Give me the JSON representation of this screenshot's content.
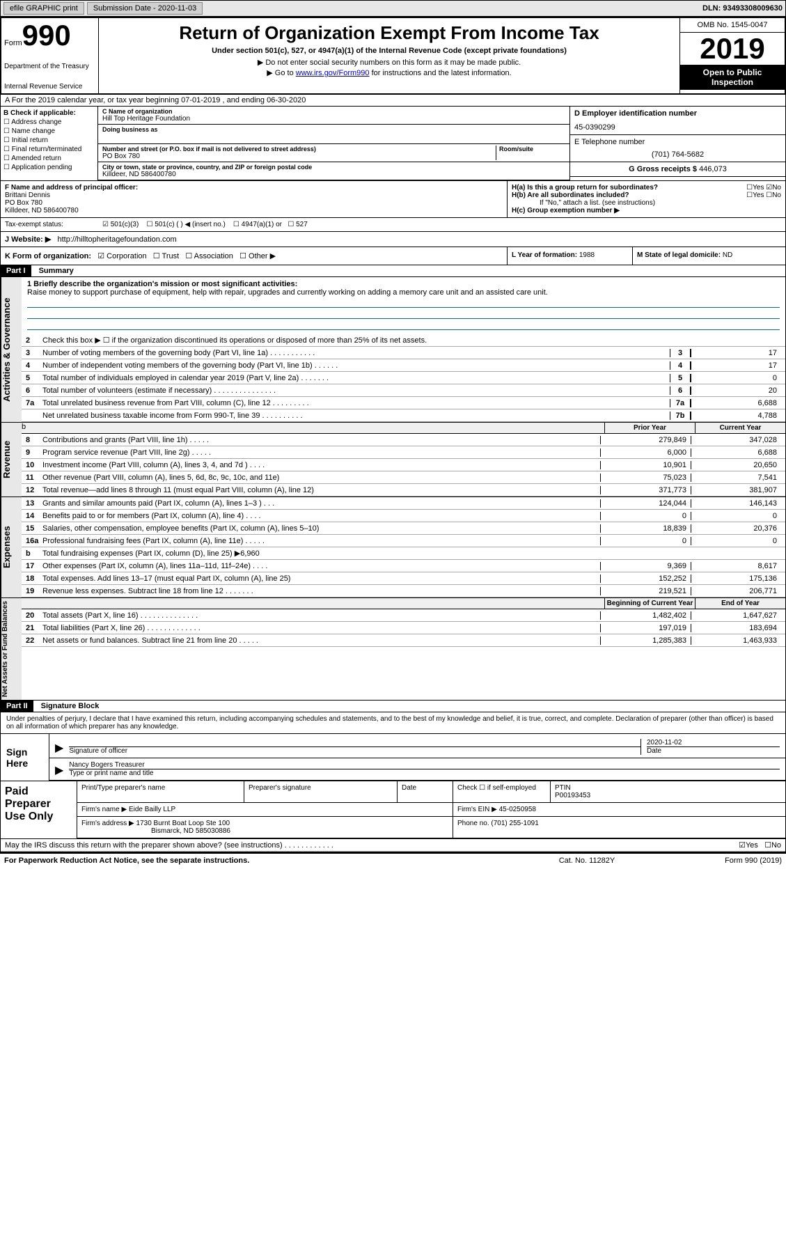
{
  "topbar": {
    "efile": "efile GRAPHIC print",
    "sub_label": "Submission Date",
    "sub_date": "2020-11-03",
    "dln": "DLN: 93493308009630"
  },
  "header": {
    "form_label": "Form",
    "form_num": "990",
    "dept": "Department of the Treasury",
    "irs": "Internal Revenue Service",
    "title": "Return of Organization Exempt From Income Tax",
    "subtitle": "Under section 501(c), 527, or 4947(a)(1) of the Internal Revenue Code (except private foundations)",
    "note1": "▶ Do not enter social security numbers on this form as it may be made public.",
    "note2_pre": "▶ Go to ",
    "note2_link": "www.irs.gov/Form990",
    "note2_post": " for instructions and the latest information.",
    "omb": "OMB No. 1545-0047",
    "year": "2019",
    "open": "Open to Public Inspection"
  },
  "row_a": "A For the 2019 calendar year, or tax year beginning 07-01-2019   , and ending 06-30-2020",
  "col_b": {
    "header": "B Check if applicable:",
    "items": [
      "Address change",
      "Name change",
      "Initial return",
      "Final return/terminated",
      "Amended return",
      "Application pending"
    ]
  },
  "col_c": {
    "name_label": "C Name of organization",
    "name": "Hill Top Heritage Foundation",
    "dba_label": "Doing business as",
    "addr_label": "Number and street (or P.O. box if mail is not delivered to street address)",
    "room_label": "Room/suite",
    "addr": "PO Box 780",
    "city_label": "City or town, state or province, country, and ZIP or foreign postal code",
    "city": "Killdeer, ND  586400780"
  },
  "col_d": {
    "ein_label": "D Employer identification number",
    "ein": "45-0390299",
    "phone_label": "E Telephone number",
    "phone": "(701) 764-5682",
    "gross_label": "G Gross receipts $",
    "gross": "446,073"
  },
  "row_f": {
    "label": "F  Name and address of principal officer:",
    "name": "Brittani Dennis",
    "addr1": "PO Box 780",
    "addr2": "Killdeer, ND  586400780"
  },
  "row_h": {
    "ha": "H(a)  Is this a group return for subordinates?",
    "hb": "H(b)  Are all subordinates included?",
    "hb_note": "If \"No,\" attach a list. (see instructions)",
    "hc": "H(c)  Group exemption number ▶",
    "yes": "Yes",
    "no": "No"
  },
  "tax_status": {
    "label": "Tax-exempt status:",
    "opt1": "501(c)(3)",
    "opt2": "501(c) (  ) ◀ (insert no.)",
    "opt3": "4947(a)(1) or",
    "opt4": "527"
  },
  "website": {
    "label": "J   Website: ▶",
    "url": "http://hilltopheritagefoundation.com"
  },
  "row_k": {
    "label": "K Form of organization:",
    "corp": "Corporation",
    "trust": "Trust",
    "assoc": "Association",
    "other": "Other ▶"
  },
  "row_l": {
    "label": "L Year of formation:",
    "val": "1988"
  },
  "row_m": {
    "label": "M State of legal domicile:",
    "val": "ND"
  },
  "part1": {
    "label": "Part I",
    "title": "Summary"
  },
  "mission": {
    "label": "1  Briefly describe the organization's mission or most significant activities:",
    "text": "Raise money to support purchase of equipment, help with repair, upgrades and currently working on adding a memory care unit and an assisted care unit."
  },
  "lines_gov": [
    {
      "num": "2",
      "desc": "Check this box ▶ ☐ if the organization discontinued its operations or disposed of more than 25% of its net assets."
    },
    {
      "num": "3",
      "desc": "Number of voting members of the governing body (Part VI, line 1a)  .  .  .  .  .  .  .  .  .  .  .",
      "box": "3",
      "val": "17"
    },
    {
      "num": "4",
      "desc": "Number of independent voting members of the governing body (Part VI, line 1b)  .  .  .  .  .  .",
      "box": "4",
      "val": "17"
    },
    {
      "num": "5",
      "desc": "Total number of individuals employed in calendar year 2019 (Part V, line 2a)  .  .  .  .  .  .  .",
      "box": "5",
      "val": "0"
    },
    {
      "num": "6",
      "desc": "Total number of volunteers (estimate if necessary)  .  .  .  .  .  .  .  .  .  .  .  .  .  .  .",
      "box": "6",
      "val": "20"
    },
    {
      "num": "7a",
      "desc": "Total unrelated business revenue from Part VIII, column (C), line 12  .  .  .  .  .  .  .  .  .",
      "box": "7a",
      "val": "6,688"
    },
    {
      "num": "",
      "desc": "Net unrelated business taxable income from Form 990-T, line 39  .  .  .  .  .  .  .  .  .  .",
      "box": "7b",
      "val": "4,788"
    }
  ],
  "col_headers": {
    "prior": "Prior Year",
    "current": "Current Year"
  },
  "lines_rev": [
    {
      "num": "8",
      "desc": "Contributions and grants (Part VIII, line 1h)  .  .  .  .  .",
      "prior": "279,849",
      "cur": "347,028"
    },
    {
      "num": "9",
      "desc": "Program service revenue (Part VIII, line 2g)  .  .  .  .  .",
      "prior": "6,000",
      "cur": "6,688"
    },
    {
      "num": "10",
      "desc": "Investment income (Part VIII, column (A), lines 3, 4, and 7d )  .  .  .  .",
      "prior": "10,901",
      "cur": "20,650"
    },
    {
      "num": "11",
      "desc": "Other revenue (Part VIII, column (A), lines 5, 6d, 8c, 9c, 10c, and 11e)",
      "prior": "75,023",
      "cur": "7,541"
    },
    {
      "num": "12",
      "desc": "Total revenue—add lines 8 through 11 (must equal Part VIII, column (A), line 12)",
      "prior": "371,773",
      "cur": "381,907"
    }
  ],
  "lines_exp": [
    {
      "num": "13",
      "desc": "Grants and similar amounts paid (Part IX, column (A), lines 1–3 )  .  .  .",
      "prior": "124,044",
      "cur": "146,143"
    },
    {
      "num": "14",
      "desc": "Benefits paid to or for members (Part IX, column (A), line 4)  .  .  .  .",
      "prior": "0",
      "cur": "0"
    },
    {
      "num": "15",
      "desc": "Salaries, other compensation, employee benefits (Part IX, column (A), lines 5–10)",
      "prior": "18,839",
      "cur": "20,376"
    },
    {
      "num": "16a",
      "desc": "Professional fundraising fees (Part IX, column (A), line 11e)  .  .  .  .  .",
      "prior": "0",
      "cur": "0"
    },
    {
      "num": "b",
      "desc": "Total fundraising expenses (Part IX, column (D), line 25) ▶6,960",
      "prior": "",
      "cur": "",
      "gray": true
    },
    {
      "num": "17",
      "desc": "Other expenses (Part IX, column (A), lines 11a–11d, 11f–24e)  .  .  .  .",
      "prior": "9,369",
      "cur": "8,617"
    },
    {
      "num": "18",
      "desc": "Total expenses. Add lines 13–17 (must equal Part IX, column (A), line 25)",
      "prior": "152,252",
      "cur": "175,136"
    },
    {
      "num": "19",
      "desc": "Revenue less expenses. Subtract line 18 from line 12  .  .  .  .  .  .  .",
      "prior": "219,521",
      "cur": "206,771"
    }
  ],
  "col_headers2": {
    "begin": "Beginning of Current Year",
    "end": "End of Year"
  },
  "lines_net": [
    {
      "num": "20",
      "desc": "Total assets (Part X, line 16)  .  .  .  .  .  .  .  .  .  .  .  .  .  .",
      "prior": "1,482,402",
      "cur": "1,647,627"
    },
    {
      "num": "21",
      "desc": "Total liabilities (Part X, line 26)  .  .  .  .  .  .  .  .  .  .  .  .  .",
      "prior": "197,019",
      "cur": "183,694"
    },
    {
      "num": "22",
      "desc": "Net assets or fund balances. Subtract line 21 from line 20  .  .  .  .  .",
      "prior": "1,285,383",
      "cur": "1,463,933"
    }
  ],
  "part2": {
    "label": "Part II",
    "title": "Signature Block"
  },
  "sig": {
    "penalty": "Under penalties of perjury, I declare that I have examined this return, including accompanying schedules and statements, and to the best of my knowledge and belief, it is true, correct, and complete. Declaration of preparer (other than officer) is based on all information of which preparer has any knowledge.",
    "sign_here": "Sign Here",
    "sig_officer": "Signature of officer",
    "date": "Date",
    "date_val": "2020-11-02",
    "name": "Nancy Bogers  Treasurer",
    "name_label": "Type or print name and title"
  },
  "paid": {
    "label": "Paid Preparer Use Only",
    "print_name": "Print/Type preparer's name",
    "prep_sig": "Preparer's signature",
    "date": "Date",
    "check": "Check ☐ if self-employed",
    "ptin_label": "PTIN",
    "ptin": "P00193453",
    "firm_name_label": "Firm's name   ▶",
    "firm_name": "Eide Bailly LLP",
    "firm_ein_label": "Firm's EIN ▶",
    "firm_ein": "45-0250958",
    "firm_addr_label": "Firm's address ▶",
    "firm_addr1": "1730 Burnt Boat Loop Ste 100",
    "firm_addr2": "Bismarck, ND  585030886",
    "phone_label": "Phone no.",
    "phone": "(701) 255-1091"
  },
  "discuss": {
    "text": "May the IRS discuss this return with the preparer shown above? (see instructions)  .  .  .  .  .  .  .  .  .  .  .  .",
    "yes": "Yes",
    "no": "No"
  },
  "footer": {
    "left": "For Paperwork Reduction Act Notice, see the separate instructions.",
    "cat": "Cat. No. 11282Y",
    "right": "Form 990 (2019)"
  }
}
